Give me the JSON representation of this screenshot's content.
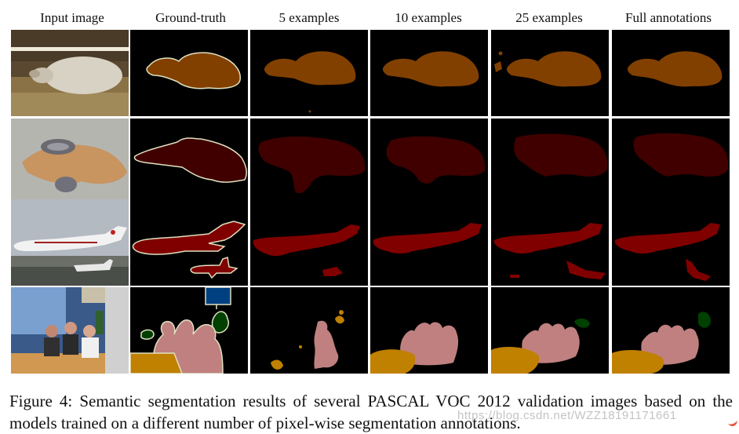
{
  "columns": [
    "Input image",
    "Ground-truth",
    "5 examples",
    "10 examples",
    "25 examples",
    "Full annotations"
  ],
  "rows": [
    "sheep",
    "cat",
    "aeroplane",
    "people"
  ],
  "class_colors": {
    "sheep": "#814000",
    "cat": "#400000",
    "aeroplane": "#800000",
    "person": "#c08080",
    "dining_table": "#c08000",
    "potted_plant": "#004000",
    "tv_monitor": "#004080",
    "boundary": "#e0e0c0"
  },
  "caption": "Figure 4:   Semantic segmentation results of several PASCAL VOC 2012 validation images based on the models trained on a different number of pixel-wise segmentation annotations.",
  "watermark": "https://blog.csdn.net/WZZ18191171661"
}
